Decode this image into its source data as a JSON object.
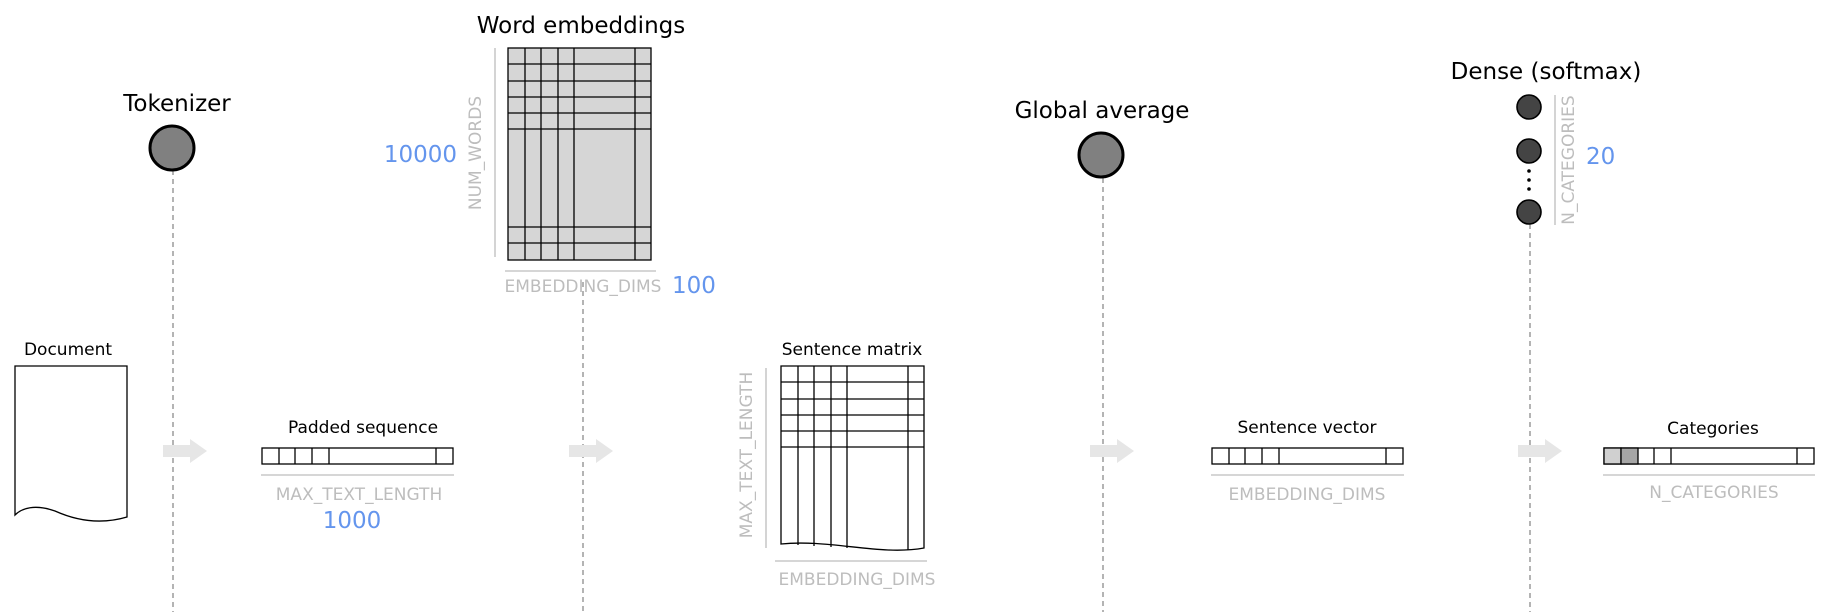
{
  "stages": {
    "tokenizer": {
      "title": "Tokenizer"
    },
    "word_embeddings": {
      "title": "Word embeddings",
      "rows_label": "NUM_WORDS",
      "rows_value": "10000",
      "cols_label": "EMBEDDING_DIMS",
      "cols_value": "100"
    },
    "global_average": {
      "title": "Global average"
    },
    "dense": {
      "title": "Dense (softmax)",
      "units_label": "N_CATEGORIES",
      "units_value": "20"
    }
  },
  "data_blocks": {
    "document": {
      "title": "Document"
    },
    "padded_sequence": {
      "title": "Padded sequence",
      "length_label": "MAX_TEXT_LENGTH",
      "length_value": "1000"
    },
    "sentence_matrix": {
      "title": "Sentence matrix",
      "rows_label": "MAX_TEXT_LENGTH",
      "cols_label": "EMBEDDING_DIMS"
    },
    "sentence_vector": {
      "title": "Sentence vector",
      "length_label": "EMBEDDING_DIMS"
    },
    "categories": {
      "title": "Categories",
      "length_label": "N_CATEGORIES"
    }
  },
  "colors": {
    "value_blue": "#6495ed",
    "label_grey": "#bdbdbd",
    "node_grey": "#808080",
    "dense_node": "#444444",
    "matrix_fill": "#d6d6d6",
    "arrow": "#e6e6e6",
    "dashed_line": "#8c8c8c"
  }
}
